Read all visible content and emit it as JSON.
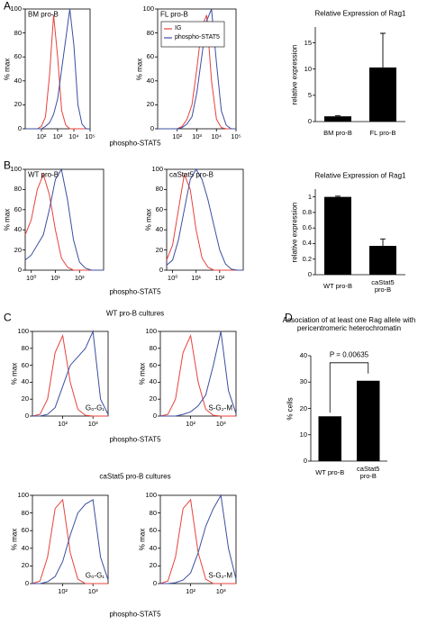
{
  "panel_labels": [
    "A",
    "B",
    "C",
    "D"
  ],
  "section_titles": [
    "WT pro-B cultures",
    "caStat5 pro-B cultures"
  ],
  "chart_data": [
    {
      "type": "line",
      "title": "BM pro-B",
      "ylabel": "% max",
      "xlog": true,
      "x": [
        10,
        17.8,
        31.6,
        56.2,
        100,
        178,
        316,
        562,
        1000,
        1778,
        3162,
        5623,
        10000,
        17783,
        31623,
        56234,
        100000
      ],
      "xlim": [
        10,
        100000
      ],
      "xticks": [
        {
          "value": 100,
          "label": "10²"
        },
        {
          "value": 1000,
          "label": "10³"
        },
        {
          "value": 10000,
          "label": "10⁴"
        },
        {
          "value": 100000,
          "label": "10⁵"
        }
      ],
      "ylim": [
        0,
        100
      ],
      "yticks": [
        0,
        20,
        40,
        60,
        80,
        100
      ],
      "series": [
        {
          "color": "#e8413c",
          "values": [
            0,
            0,
            0,
            0,
            2,
            10,
            45,
            95,
            60,
            15,
            3,
            0,
            0,
            0,
            0,
            0,
            0
          ]
        },
        {
          "color": "#3b4fa0",
          "values": [
            0,
            0,
            0,
            0,
            0,
            2,
            5,
            12,
            25,
            50,
            75,
            100,
            70,
            20,
            4,
            0,
            0
          ]
        }
      ]
    },
    {
      "type": "line",
      "title": "FL pro-B",
      "ylabel": "% max",
      "xlabel": "phospho-STAT5",
      "xlog": true,
      "legend": "upper left",
      "x": [
        10,
        17.8,
        31.6,
        56.2,
        100,
        178,
        316,
        562,
        1000,
        1778,
        3162,
        5623,
        10000,
        17783,
        31623,
        56234,
        100000
      ],
      "xlim": [
        10,
        100000
      ],
      "xticks": [
        {
          "value": 100,
          "label": "10²"
        },
        {
          "value": 1000,
          "label": "10³"
        },
        {
          "value": 10000,
          "label": "10⁴"
        },
        {
          "value": 100000,
          "label": "10⁵"
        }
      ],
      "ylim": [
        0,
        100
      ],
      "yticks": [
        0,
        20,
        40,
        60,
        80,
        100
      ],
      "series": [
        {
          "name": "IG",
          "color": "#e8413c",
          "values": [
            0,
            0,
            0,
            0,
            0,
            2,
            8,
            20,
            50,
            85,
            95,
            40,
            8,
            1,
            0,
            0,
            0
          ]
        },
        {
          "name": "phospho-STAT5",
          "color": "#3b4fa0",
          "values": [
            0,
            0,
            0,
            0,
            0,
            1,
            4,
            10,
            30,
            60,
            90,
            100,
            55,
            15,
            3,
            0,
            0
          ]
        }
      ]
    },
    {
      "type": "bar",
      "title": "Relative Expression of Rag1",
      "ylabel": "relative expression",
      "categories": [
        "BM pro-B",
        "FL pro-B"
      ],
      "values": [
        1,
        10.3
      ],
      "errors": [
        0.1,
        6.5
      ],
      "color": "#000000",
      "ylim": [
        0,
        18
      ],
      "yticks": [
        0,
        5,
        10,
        15
      ]
    },
    {
      "type": "line",
      "title": "WT pro-B",
      "ylabel": "% max",
      "xlog": true,
      "x": [
        0.56,
        1,
        1.78,
        3.16,
        5.62,
        10,
        17.8,
        31.6,
        56.2,
        100,
        178,
        316,
        562,
        1000
      ],
      "xlim": [
        0.56,
        1000
      ],
      "xticks": [
        {
          "value": 1,
          "label": "10⁰"
        },
        {
          "value": 10,
          "label": "10¹"
        },
        {
          "value": 100,
          "label": "10²"
        }
      ],
      "ylim": [
        0,
        100
      ],
      "yticks": [
        0,
        20,
        40,
        60,
        80,
        100
      ],
      "series": [
        {
          "color": "#e8413c",
          "values": [
            35,
            50,
            80,
            95,
            75,
            40,
            12,
            3,
            0,
            0,
            0,
            0,
            0,
            0
          ]
        },
        {
          "color": "#3b4fa0",
          "values": [
            10,
            15,
            25,
            35,
            60,
            90,
            100,
            70,
            30,
            8,
            2,
            0,
            0,
            0
          ]
        }
      ]
    },
    {
      "type": "line",
      "title": "caStat5 pro-B",
      "ylabel": "% max",
      "xlabel": "phospho-STAT5",
      "xlog": true,
      "x": [
        0.56,
        1,
        1.78,
        3.16,
        5.62,
        10,
        17.8,
        31.6,
        56.2,
        100,
        178,
        316,
        562,
        1000
      ],
      "xlim": [
        0.56,
        1000
      ],
      "xticks": [
        {
          "value": 1,
          "label": "10⁰"
        },
        {
          "value": 10,
          "label": "10¹"
        },
        {
          "value": 100,
          "label": "10²"
        }
      ],
      "ylim": [
        0,
        100
      ],
      "yticks": [
        0,
        20,
        40,
        60,
        80,
        100
      ],
      "series": [
        {
          "color": "#e8413c",
          "values": [
            10,
            25,
            60,
            95,
            80,
            40,
            12,
            3,
            0,
            0,
            0,
            0,
            0,
            0
          ]
        },
        {
          "color": "#3b4fa0",
          "values": [
            5,
            10,
            30,
            60,
            90,
            100,
            90,
            70,
            45,
            20,
            6,
            1,
            0,
            0
          ]
        }
      ]
    },
    {
      "type": "bar",
      "title": "Relative Expression of Rag1",
      "ylabel": "relative expression",
      "categories": [
        "WT pro-B",
        "caStat5 pro-B"
      ],
      "values": [
        1,
        0.37
      ],
      "errors": [
        0.01,
        0.09
      ],
      "color": "#000000",
      "ylim": [
        0,
        1.1
      ],
      "yticks": [
        0,
        0.2,
        0.4,
        0.6,
        0.8,
        1
      ]
    },
    {
      "type": "line",
      "ylabel": "% max",
      "annotation": "G₀-G₁",
      "xlog": true,
      "x": [
        10,
        17.8,
        31.6,
        56.2,
        100,
        178,
        316,
        562,
        1000,
        1778,
        3162
      ],
      "xlim": [
        10,
        3162
      ],
      "xticks": [
        {
          "value": 100,
          "label": "10²"
        },
        {
          "value": 1000,
          "label": "10³"
        }
      ],
      "ylim": [
        0,
        100
      ],
      "yticks": [
        0,
        20,
        40,
        60,
        80,
        100
      ],
      "series": [
        {
          "color": "#e8413c",
          "values": [
            0,
            2,
            20,
            75,
            95,
            40,
            8,
            1,
            0,
            0,
            0
          ]
        },
        {
          "color": "#3b4fa0",
          "values": [
            0,
            0,
            2,
            10,
            35,
            60,
            70,
            80,
            100,
            20,
            2
          ]
        }
      ]
    },
    {
      "type": "line",
      "ylabel": "% max",
      "xlabel": "phospho-STAT5",
      "annotation": "S-G₂-M",
      "xlog": true,
      "x": [
        10,
        17.8,
        31.6,
        56.2,
        100,
        178,
        316,
        562,
        1000,
        1778,
        3162
      ],
      "xlim": [
        10,
        3162
      ],
      "xticks": [
        {
          "value": 100,
          "label": "10²"
        },
        {
          "value": 1000,
          "label": "10³"
        }
      ],
      "ylim": [
        0,
        100
      ],
      "yticks": [
        0,
        20,
        40,
        60,
        80,
        100
      ],
      "series": [
        {
          "color": "#e8413c",
          "values": [
            0,
            2,
            20,
            75,
            95,
            40,
            8,
            1,
            0,
            0,
            0
          ]
        },
        {
          "color": "#3b4fa0",
          "values": [
            0,
            0,
            0,
            2,
            5,
            12,
            25,
            60,
            100,
            30,
            3
          ]
        }
      ]
    },
    {
      "type": "bar",
      "title": "Association of at least one Rag allele with pericentromeric heterochromatin",
      "ylabel": "% cells",
      "categories": [
        "WT pro-B",
        "caStat5 pro-B"
      ],
      "values": [
        17,
        30.5
      ],
      "color": "#000000",
      "ylim": [
        0,
        40
      ],
      "yticks": [
        0,
        10,
        20,
        30,
        40
      ],
      "annotation": "P = 0.00635"
    },
    {
      "type": "line",
      "ylabel": "% max",
      "annotation": "G₀-G₁",
      "xlog": true,
      "x": [
        10,
        17.8,
        31.6,
        56.2,
        100,
        178,
        316,
        562,
        1000,
        1778,
        3162
      ],
      "xlim": [
        10,
        3162
      ],
      "xticks": [
        {
          "value": 100,
          "label": "10²"
        },
        {
          "value": 1000,
          "label": "10³"
        }
      ],
      "ylim": [
        0,
        100
      ],
      "yticks": [
        0,
        20,
        40,
        60,
        80,
        100
      ],
      "series": [
        {
          "color": "#e8413c",
          "values": [
            0,
            3,
            30,
            85,
            95,
            35,
            5,
            0,
            0,
            0,
            0
          ]
        },
        {
          "color": "#3b4fa0",
          "values": [
            0,
            0,
            2,
            8,
            25,
            55,
            80,
            90,
            95,
            30,
            4
          ]
        }
      ]
    },
    {
      "type": "line",
      "ylabel": "% max",
      "xlabel": "phospho-STAT5",
      "annotation": "S-G₂-M",
      "xlog": true,
      "x": [
        10,
        17.8,
        31.6,
        56.2,
        100,
        178,
        316,
        562,
        1000,
        1778,
        3162
      ],
      "xlim": [
        10,
        3162
      ],
      "xticks": [
        {
          "value": 100,
          "label": "10²"
        },
        {
          "value": 1000,
          "label": "10³"
        }
      ],
      "ylim": [
        0,
        100
      ],
      "yticks": [
        0,
        20,
        40,
        60,
        80,
        100
      ],
      "series": [
        {
          "color": "#e8413c",
          "values": [
            0,
            3,
            30,
            85,
            95,
            35,
            5,
            0,
            0,
            0,
            0
          ]
        },
        {
          "color": "#3b4fa0",
          "values": [
            0,
            0,
            1,
            4,
            12,
            35,
            65,
            85,
            100,
            40,
            5
          ]
        }
      ]
    }
  ]
}
